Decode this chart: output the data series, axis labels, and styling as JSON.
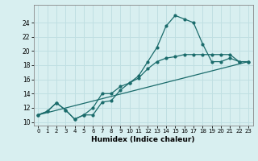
{
  "xlabel": "Humidex (Indice chaleur)",
  "ylabel": "",
  "bg_color": "#d8eff0",
  "grid_color": "#c0dfe2",
  "line_color": "#1a6b6b",
  "xlim": [
    -0.5,
    23.5
  ],
  "ylim": [
    9.5,
    26.5
  ],
  "xticks": [
    0,
    1,
    2,
    3,
    4,
    5,
    6,
    7,
    8,
    9,
    10,
    11,
    12,
    13,
    14,
    15,
    16,
    17,
    18,
    19,
    20,
    21,
    22,
    23
  ],
  "yticks": [
    10,
    12,
    14,
    16,
    18,
    20,
    22,
    24
  ],
  "line1_x": [
    0,
    1,
    2,
    3,
    4,
    5,
    6,
    7,
    8,
    9,
    10,
    11,
    12,
    13,
    14,
    15,
    16,
    17,
    18,
    19,
    20,
    21,
    22,
    23
  ],
  "line1_y": [
    11,
    11.5,
    12.7,
    11.7,
    10.4,
    11.0,
    11.0,
    12.8,
    13.0,
    14.5,
    15.5,
    16.5,
    18.5,
    20.5,
    23.5,
    25.0,
    24.5,
    24.0,
    21.0,
    18.5,
    18.5,
    19.0,
    18.5,
    18.5
  ],
  "line2_x": [
    0,
    1,
    2,
    3,
    4,
    5,
    6,
    7,
    8,
    9,
    10,
    11,
    12,
    13,
    14,
    15,
    16,
    17,
    18,
    19,
    20,
    21,
    22,
    23
  ],
  "line2_y": [
    11,
    11.5,
    12.7,
    11.7,
    10.4,
    11.0,
    12.0,
    14.0,
    14.0,
    15.0,
    15.5,
    16.2,
    17.5,
    18.5,
    19.0,
    19.2,
    19.5,
    19.5,
    19.5,
    19.5,
    19.5,
    19.5,
    18.5,
    18.5
  ],
  "line3_x": [
    0,
    23
  ],
  "line3_y": [
    11,
    18.5
  ]
}
